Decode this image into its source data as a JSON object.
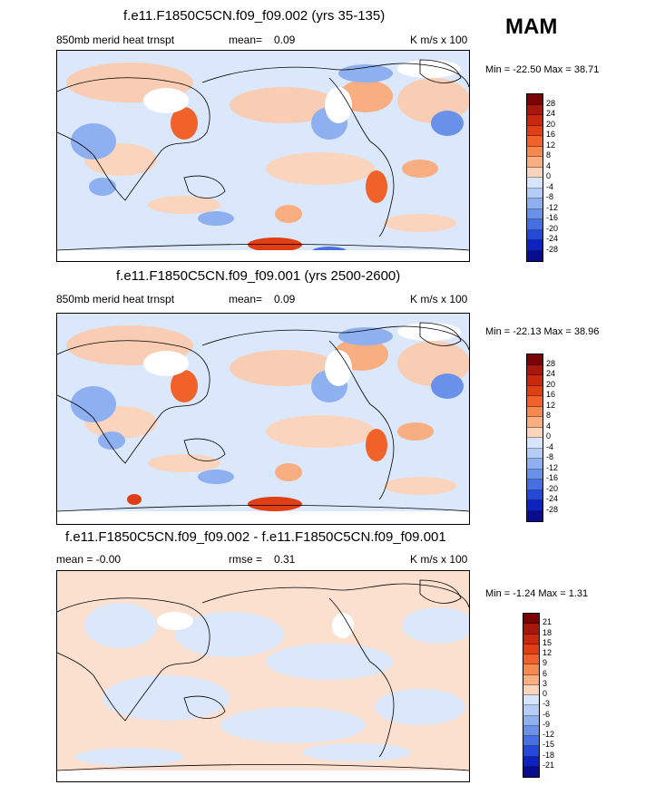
{
  "season": "MAM",
  "panels": [
    {
      "title": "f.e11.F1850C5CN.f09_f09.002 (yrs 35-135)",
      "left": "850mb merid heat trnspt",
      "center_label": "mean=",
      "center_value": "0.09",
      "units": "K m/s x 100",
      "minmax": "Min = -22.50 Max =  38.71",
      "levels": [
        "28",
        "24",
        "20",
        "16",
        "12",
        "8",
        "4",
        "0",
        "-4",
        "-8",
        "-12",
        "-16",
        "-20",
        "-24",
        "-28"
      ]
    },
    {
      "title": "f.e11.F1850C5CN.f09_f09.001 (yrs 2500-2600)",
      "left": "850mb merid heat trnspt",
      "center_label": "mean=",
      "center_value": "0.09",
      "units": "K m/s x 100",
      "minmax": "Min = -22.13 Max =  38.96",
      "levels": [
        "28",
        "24",
        "20",
        "16",
        "12",
        "8",
        "4",
        "0",
        "-4",
        "-8",
        "-12",
        "-16",
        "-20",
        "-24",
        "-28"
      ]
    },
    {
      "title": "f.e11.F1850C5CN.f09_f09.002 - f.e11.F1850C5CN.f09_f09.001",
      "left": "mean =  -0.00",
      "center_label": "rmse =",
      "center_value": "0.31",
      "units": "K m/s x 100",
      "minmax": "Min =  -1.24 Max =   1.31",
      "levels": [
        "21",
        "18",
        "15",
        "12",
        "9",
        "6",
        "3",
        "0",
        "-3",
        "-6",
        "-9",
        "-12",
        "-15",
        "-18",
        "-21"
      ]
    }
  ],
  "colors": {
    "scale": [
      "#7a0403",
      "#a8170b",
      "#c8280e",
      "#e03e14",
      "#f0622a",
      "#f6894f",
      "#f8ae80",
      "#fbd4bd",
      "#ffffff",
      "#d6e5fb",
      "#b4cdf6",
      "#8eb0f0",
      "#6a91ea",
      "#4670e2",
      "#2448d8",
      "#0d22bf",
      "#0a0c8e"
    ],
    "land_outline": "#000000"
  }
}
